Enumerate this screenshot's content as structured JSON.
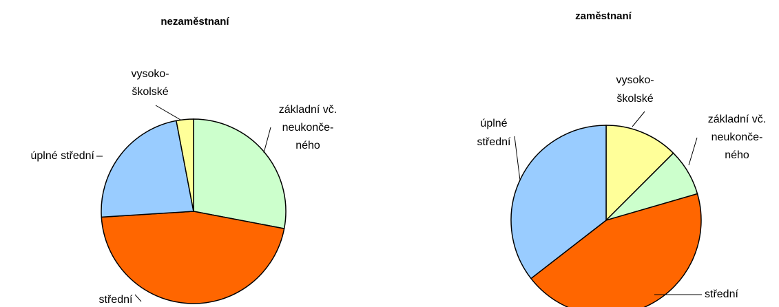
{
  "chart_data": [
    {
      "type": "pie",
      "title": "nezaměstnaní",
      "categories": [
        [
          "základní vč.",
          "neukonče-",
          "ného"
        ],
        [
          "střední"
        ],
        [
          "úplné střední"
        ],
        [
          "vysoko-",
          "školské"
        ]
      ],
      "values": [
        28,
        46,
        23,
        3
      ],
      "colors": [
        "#ccffcc",
        "#ff6600",
        "#99ccff",
        "#ffff99"
      ]
    },
    {
      "type": "pie",
      "title": "zaměstnaní",
      "categories": [
        [
          "vysoko-",
          "školské"
        ],
        [
          "základní vč.",
          "neukonče-",
          "ného"
        ],
        [
          "střední"
        ],
        [
          "úplné",
          "střední"
        ]
      ],
      "values": [
        12.5,
        8,
        44,
        35.5
      ],
      "colors": [
        "#ffff99",
        "#ccffcc",
        "#ff6600",
        "#99ccff"
      ]
    }
  ]
}
